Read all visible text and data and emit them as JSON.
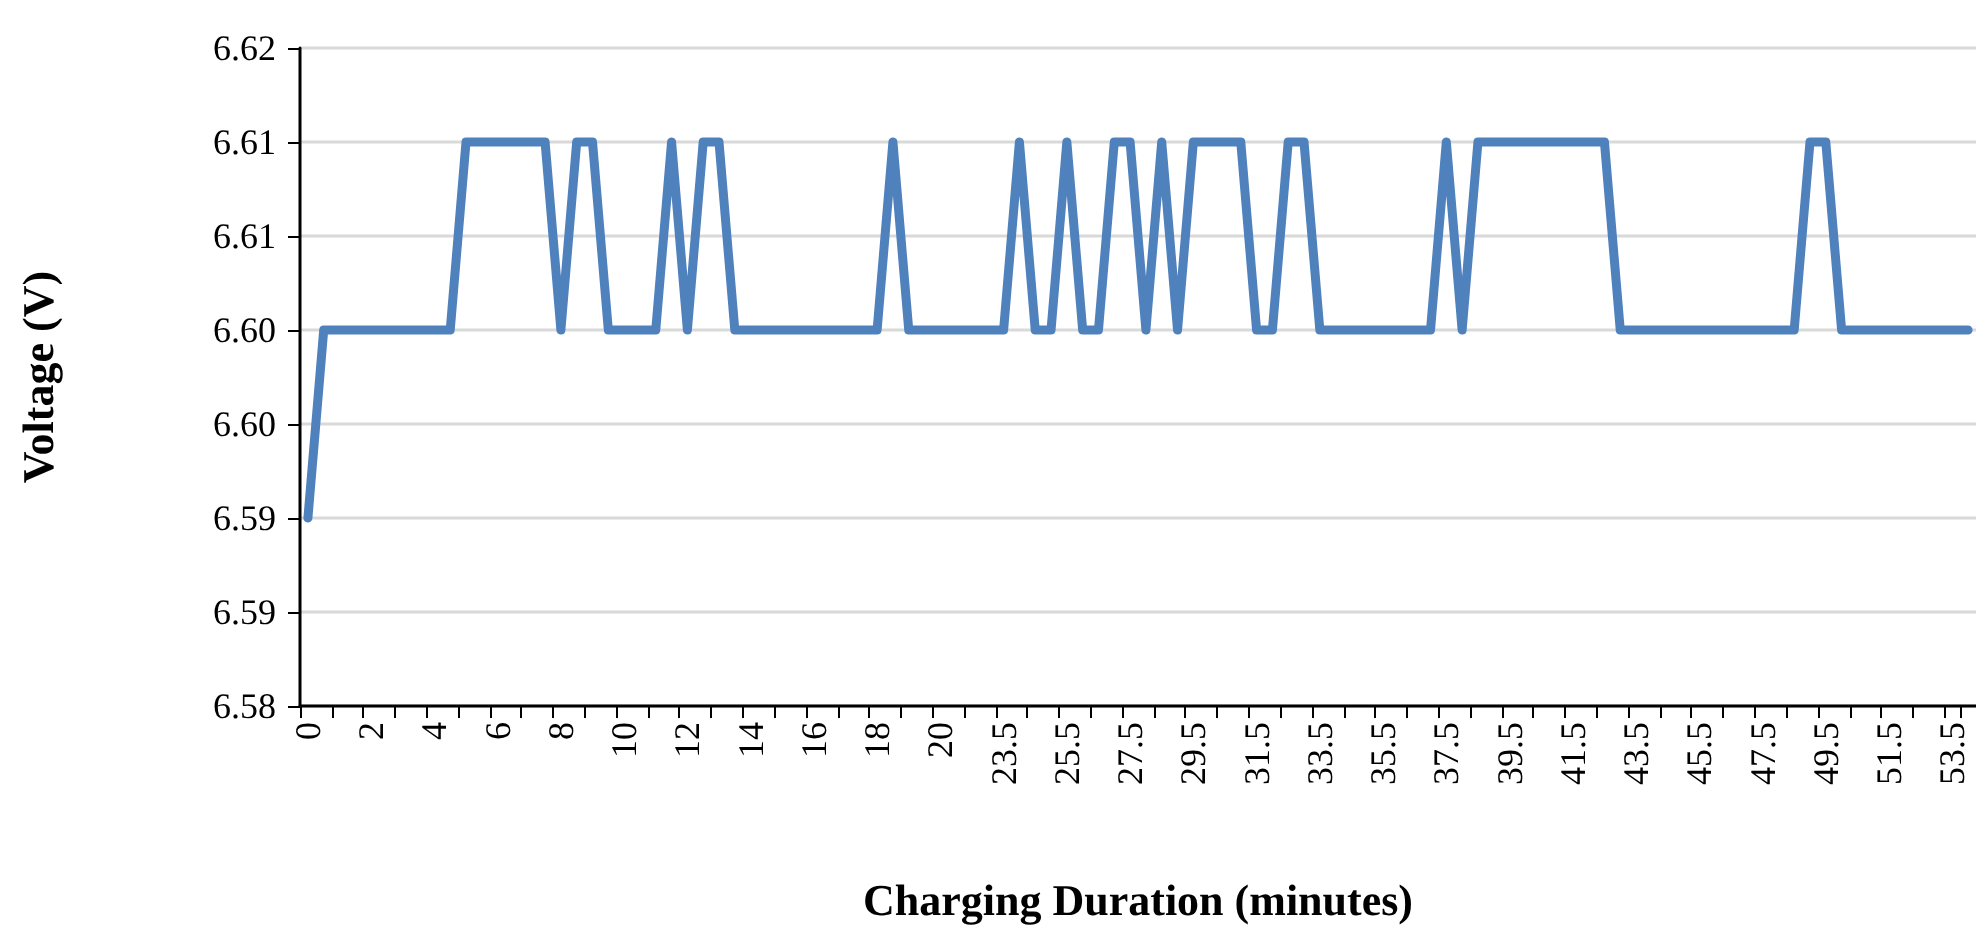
{
  "chart_data": {
    "type": "line",
    "xlabel": "Charging Duration (minutes)",
    "ylabel": "Voltage (V)",
    "categories": [
      "0",
      null,
      null,
      null,
      "2",
      null,
      null,
      null,
      "4",
      null,
      null,
      null,
      "6",
      null,
      null,
      null,
      "8",
      null,
      null,
      null,
      "10",
      null,
      null,
      null,
      "12",
      null,
      null,
      null,
      "14",
      null,
      null,
      null,
      "16",
      null,
      null,
      null,
      "18",
      null,
      null,
      null,
      "20",
      null,
      null,
      null,
      "23.5",
      null,
      null,
      null,
      "25.5",
      null,
      null,
      null,
      "27.5",
      null,
      null,
      null,
      "29.5",
      null,
      null,
      null,
      "31.5",
      null,
      null,
      null,
      "33.5",
      null,
      null,
      null,
      "35.5",
      null,
      null,
      null,
      "37.5",
      null,
      null,
      null,
      "39.5",
      null,
      null,
      null,
      "41.5",
      null,
      null,
      null,
      "43.5",
      null,
      null,
      null,
      "45.5",
      null,
      null,
      null,
      "47.5",
      null,
      null,
      null,
      "49.5",
      null,
      null,
      null,
      "51.5",
      null,
      null,
      null,
      "53.5",
      null
    ],
    "series": [
      {
        "color": "#4f81bd",
        "values": [
          6.595,
          6.605,
          6.605,
          6.605,
          6.605,
          6.605,
          6.605,
          6.605,
          6.605,
          6.605,
          6.615,
          6.615,
          6.615,
          6.615,
          6.615,
          6.615,
          6.605,
          6.615,
          6.615,
          6.605,
          6.605,
          6.605,
          6.605,
          6.615,
          6.605,
          6.615,
          6.615,
          6.605,
          6.605,
          6.605,
          6.605,
          6.605,
          6.605,
          6.605,
          6.605,
          6.605,
          6.605,
          6.615,
          6.605,
          6.605,
          6.605,
          6.605,
          6.605,
          6.605,
          6.605,
          6.615,
          6.605,
          6.605,
          6.615,
          6.605,
          6.605,
          6.615,
          6.615,
          6.605,
          6.615,
          6.605,
          6.615,
          6.615,
          6.615,
          6.615,
          6.605,
          6.605,
          6.615,
          6.615,
          6.605,
          6.605,
          6.605,
          6.605,
          6.605,
          6.605,
          6.605,
          6.605,
          6.615,
          6.605,
          6.615,
          6.615,
          6.615,
          6.615,
          6.615,
          6.615,
          6.615,
          6.615,
          6.615,
          6.605,
          6.605,
          6.605,
          6.605,
          6.605,
          6.605,
          6.605,
          6.605,
          6.605,
          6.605,
          6.605,
          6.605,
          6.615,
          6.615,
          6.605,
          6.605,
          6.605,
          6.605,
          6.605,
          6.605,
          6.605,
          6.605,
          6.605
        ]
      }
    ],
    "ylim": [
      6.585,
      6.62
    ],
    "yticks": [
      {
        "value": 6.585,
        "label": "6.58"
      },
      {
        "value": 6.59,
        "label": "6.59"
      },
      {
        "value": 6.595,
        "label": "6.59"
      },
      {
        "value": 6.6,
        "label": "6.60"
      },
      {
        "value": 6.605,
        "label": "6.60"
      },
      {
        "value": 6.61,
        "label": "6.61"
      },
      {
        "value": 6.615,
        "label": "6.61"
      },
      {
        "value": 6.62,
        "label": "6.62"
      }
    ],
    "grid": "y",
    "marker": "none",
    "line_style": "solid"
  }
}
